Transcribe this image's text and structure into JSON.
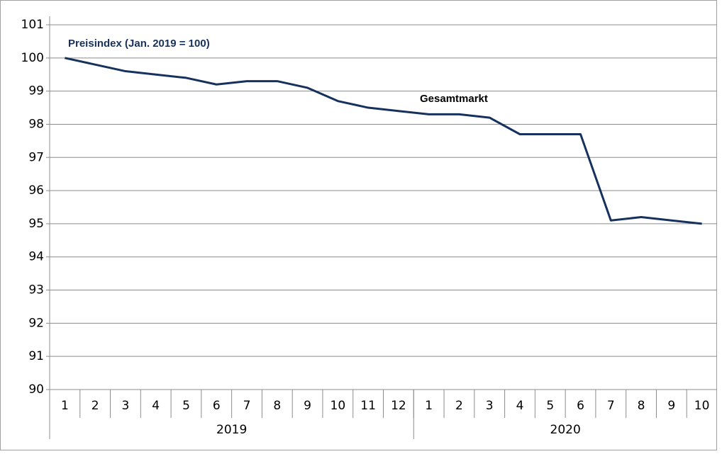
{
  "chart_data": {
    "type": "line",
    "title": "Preisindex (Jan. 2019 = 100)",
    "annotations": [
      "Gesamtmarkt"
    ],
    "categories": [
      "1",
      "2",
      "3",
      "4",
      "5",
      "6",
      "7",
      "8",
      "9",
      "10",
      "11",
      "12",
      "1",
      "2",
      "3",
      "4",
      "5",
      "6",
      "7",
      "8",
      "9",
      "10"
    ],
    "category_groups": [
      {
        "label": "2019",
        "size": 12
      },
      {
        "label": "2020",
        "size": 10
      }
    ],
    "series": [
      {
        "name": "Gesamtmarkt",
        "color": "#16325c",
        "values": [
          100,
          99.8,
          99.6,
          99.5,
          99.4,
          99.2,
          99.3,
          99.3,
          99.1,
          98.7,
          98.5,
          98.4,
          98.3,
          98.3,
          98.2,
          97.7,
          97.7,
          97.7,
          95.1,
          95.2,
          95.1,
          95.0
        ]
      }
    ],
    "ylim": [
      90,
      101
    ],
    "yticks": [
      90,
      91,
      92,
      93,
      94,
      95,
      96,
      97,
      98,
      99,
      100,
      101
    ],
    "grid": true
  }
}
